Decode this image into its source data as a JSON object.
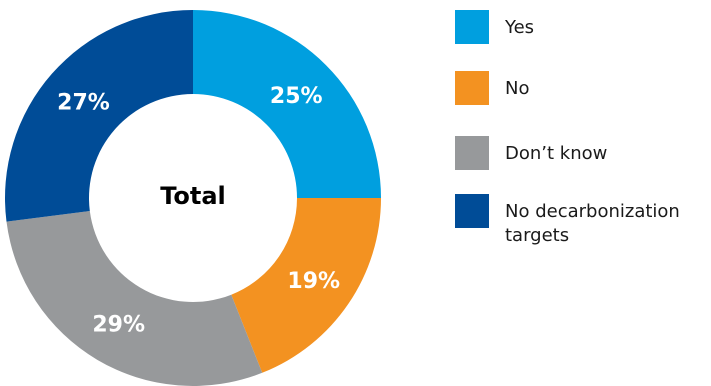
{
  "chart_data": {
    "type": "pie",
    "title": "",
    "center_label": "Total",
    "slices": [
      {
        "label": "Yes",
        "value": 25,
        "value_label": "25%",
        "color": "#009fdf"
      },
      {
        "label": "No",
        "value": 19,
        "value_label": "19%",
        "color": "#f39221"
      },
      {
        "label": "Don’t know",
        "value": 29,
        "value_label": "29%",
        "color": "#97999b"
      },
      {
        "label": "No decarbonization targets",
        "value": 27,
        "value_label": "27%",
        "color": "#004c97"
      }
    ],
    "legend_position": "right"
  }
}
